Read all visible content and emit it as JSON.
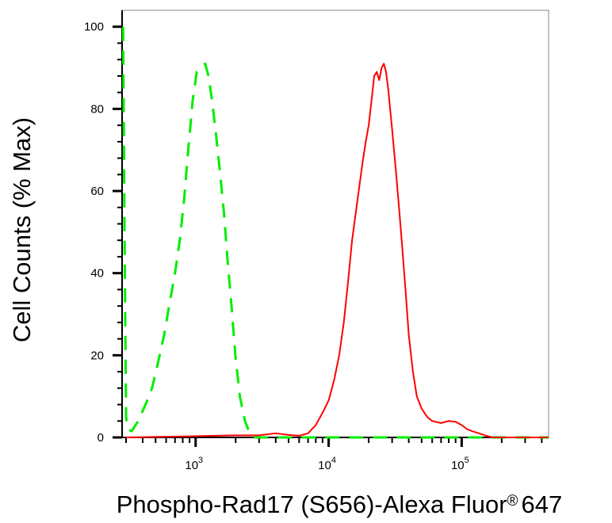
{
  "chart_data": {
    "type": "line",
    "title": "",
    "xlabel": "Phospho-Rad17 (S656)-Alexa Fluor",
    "xlabel_mark": "®",
    "xlabel_suffix": "647",
    "ylabel": "Cell Counts (% Max)",
    "xscale": "log",
    "xlim": [
      280,
      450000
    ],
    "ylim": [
      0,
      104
    ],
    "grid": false,
    "legend": "none",
    "y_ticks": [
      "0",
      "20",
      "40",
      "60",
      "80",
      "100"
    ],
    "x_ticks": [
      {
        "base": "10",
        "exp": "3"
      },
      {
        "base": "10",
        "exp": "4"
      },
      {
        "base": "10",
        "exp": "5"
      }
    ],
    "series": [
      {
        "color": "#00ee00",
        "style": "dashed",
        "points": [
          [
            285,
            100
          ],
          [
            292,
            50
          ],
          [
            300,
            5
          ],
          [
            310,
            2
          ],
          [
            330,
            1.5
          ],
          [
            370,
            4
          ],
          [
            420,
            8
          ],
          [
            470,
            12
          ],
          [
            520,
            18
          ],
          [
            580,
            25
          ],
          [
            640,
            33
          ],
          [
            700,
            40
          ],
          [
            760,
            48
          ],
          [
            820,
            58
          ],
          [
            880,
            70
          ],
          [
            950,
            82
          ],
          [
            1020,
            89
          ],
          [
            1100,
            90
          ],
          [
            1180,
            91
          ],
          [
            1250,
            88
          ],
          [
            1330,
            82
          ],
          [
            1420,
            74
          ],
          [
            1520,
            65
          ],
          [
            1630,
            55
          ],
          [
            1740,
            43
          ],
          [
            1860,
            32
          ],
          [
            1990,
            20
          ],
          [
            2150,
            10
          ],
          [
            2350,
            4
          ],
          [
            2550,
            1
          ],
          [
            2800,
            0
          ],
          [
            4000,
            0
          ],
          [
            10000,
            0
          ],
          [
            100000,
            0
          ],
          [
            450000,
            0
          ]
        ]
      },
      {
        "color": "#ff0000",
        "style": "solid",
        "points": [
          [
            300,
            0
          ],
          [
            1000,
            0.3
          ],
          [
            2000,
            0.5
          ],
          [
            3000,
            0.5
          ],
          [
            4000,
            1
          ],
          [
            5000,
            0.6
          ],
          [
            6000,
            0.4
          ],
          [
            7000,
            1
          ],
          [
            8000,
            3
          ],
          [
            9000,
            6
          ],
          [
            10000,
            9
          ],
          [
            11000,
            14
          ],
          [
            12000,
            20
          ],
          [
            13000,
            28
          ],
          [
            14000,
            38
          ],
          [
            15000,
            48
          ],
          [
            16500,
            58
          ],
          [
            18000,
            67
          ],
          [
            19000,
            72
          ],
          [
            20000,
            76
          ],
          [
            21000,
            82
          ],
          [
            22000,
            88
          ],
          [
            23000,
            89
          ],
          [
            24000,
            87
          ],
          [
            25000,
            90
          ],
          [
            26000,
            91
          ],
          [
            27000,
            89
          ],
          [
            28000,
            85
          ],
          [
            30000,
            75
          ],
          [
            32000,
            65
          ],
          [
            34000,
            55
          ],
          [
            36000,
            45
          ],
          [
            38000,
            35
          ],
          [
            40000,
            25
          ],
          [
            43000,
            16
          ],
          [
            46000,
            10
          ],
          [
            50000,
            7
          ],
          [
            55000,
            5
          ],
          [
            60000,
            4
          ],
          [
            70000,
            3.5
          ],
          [
            80000,
            4
          ],
          [
            90000,
            3.8
          ],
          [
            100000,
            3
          ],
          [
            110000,
            2
          ],
          [
            120000,
            1.5
          ],
          [
            135000,
            1
          ],
          [
            150000,
            0.5
          ],
          [
            170000,
            0
          ],
          [
            200000,
            0
          ],
          [
            450000,
            0
          ]
        ]
      }
    ]
  }
}
